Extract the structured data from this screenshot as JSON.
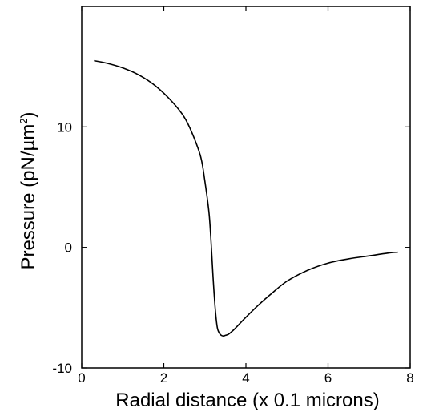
{
  "chart_data": {
    "type": "line",
    "title": "",
    "xlabel": "Radial distance (x 0.1 microns)",
    "ylabel": "Pressure (pN/µm",
    "ylabel_superscript": "2",
    "ylabel_close": ")",
    "xlim": [
      0,
      8
    ],
    "ylim": [
      -10,
      20
    ],
    "x_ticks": [
      0,
      2,
      4,
      6,
      8
    ],
    "x_tick_labels": [
      "0",
      "2",
      "4",
      "6",
      "8"
    ],
    "y_ticks": [
      -10,
      0,
      10
    ],
    "y_tick_labels": [
      "-10",
      "0",
      "10"
    ],
    "grid": false,
    "series": [
      {
        "color": "#000000",
        "x": [
          0.3,
          0.6,
          1.0,
          1.4,
          1.8,
          2.2,
          2.5,
          2.7,
          2.9,
          3.0,
          3.1,
          3.15,
          3.2,
          3.25,
          3.3,
          3.35,
          3.4,
          3.45,
          3.5,
          3.55,
          3.6,
          3.7,
          3.8,
          4.0,
          4.3,
          4.6,
          5.0,
          5.5,
          6.0,
          6.5,
          7.0,
          7.5,
          7.7
        ],
        "y": [
          15.5,
          15.3,
          14.9,
          14.3,
          13.4,
          12.1,
          10.8,
          9.4,
          7.5,
          5.5,
          2.9,
          0.5,
          -2.5,
          -5.0,
          -6.6,
          -7.1,
          -7.3,
          -7.35,
          -7.3,
          -7.25,
          -7.15,
          -6.85,
          -6.5,
          -5.8,
          -4.8,
          -3.9,
          -2.8,
          -1.9,
          -1.3,
          -0.95,
          -0.7,
          -0.45,
          -0.4
        ]
      }
    ]
  }
}
